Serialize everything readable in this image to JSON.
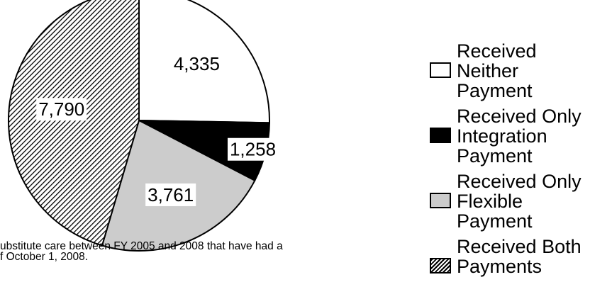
{
  "chart_data": {
    "type": "pie",
    "title": "",
    "slices": [
      {
        "label": "Received Neither Payment",
        "value": 4335,
        "data_label": "4,335",
        "fill": "white"
      },
      {
        "label": "Received Only Integration Payment",
        "value": 1258,
        "data_label": "1,258",
        "fill": "black"
      },
      {
        "label": "Received Only Flexible Payment",
        "value": 3761,
        "data_label": "3,761",
        "fill": "lightgray"
      },
      {
        "label": "Received Both Payments",
        "value": 7790,
        "data_label": "7,790",
        "fill": "hatched"
      }
    ],
    "legend": {
      "placement": "right",
      "items": [
        {
          "lines": [
            "Received",
            "Neither",
            "Payment"
          ],
          "fill": "white"
        },
        {
          "lines": [
            "Received Only",
            "Integration",
            "Payment"
          ],
          "fill": "black"
        },
        {
          "lines": [
            "Received Only",
            "Flexible",
            "Payment"
          ],
          "fill": "lightgray"
        },
        {
          "lines": [
            "Received Both",
            "Payments"
          ],
          "fill": "hatched"
        }
      ]
    },
    "colors": {
      "white": "#ffffff",
      "black": "#000000",
      "lightgray": "#cccccc",
      "hatch_bg": "#ffffff",
      "hatch_line": "#000000"
    }
  },
  "footnote": {
    "lines": [
      "ubstitute care between FY 2005 and 2008 that have had a",
      "f October 1, 2008."
    ]
  }
}
